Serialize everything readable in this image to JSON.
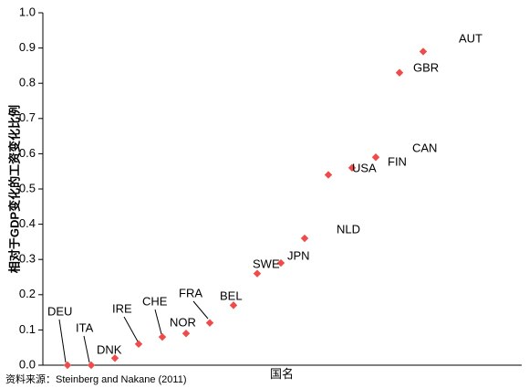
{
  "chart_data": {
    "type": "scatter",
    "title": "",
    "xlabel": "国名",
    "ylabel": "相对于GDP变化的工资变化比例",
    "ylim": [
      0,
      1.0
    ],
    "yticks": [
      0,
      0.1,
      0.2,
      0.3,
      0.4,
      0.5,
      0.6,
      0.7,
      0.8,
      0.9,
      1.0
    ],
    "ytick_labels": [
      "0.0",
      "0.1",
      "0.2",
      "0.3",
      "0.4",
      "0.5",
      "0.6",
      "0.7",
      "0.8",
      "0.9",
      "1.0"
    ],
    "grid": false,
    "marker": "diamond",
    "marker_color": "#ef4b4b",
    "categories": [
      "DEU",
      "ITA",
      "DNK",
      "IRE",
      "CHE",
      "NOR",
      "FRA",
      "BEL",
      "SWE",
      "JPN",
      "NLD",
      "USA",
      "FIN",
      "CAN",
      "GBR",
      "AUT"
    ],
    "values": [
      0.0,
      0.0,
      0.02,
      0.06,
      0.08,
      0.09,
      0.12,
      0.17,
      0.26,
      0.29,
      0.36,
      0.54,
      0.56,
      0.59,
      0.83,
      0.89
    ]
  },
  "source_note": "资料来源：Steinberg and Nakane (2011)"
}
